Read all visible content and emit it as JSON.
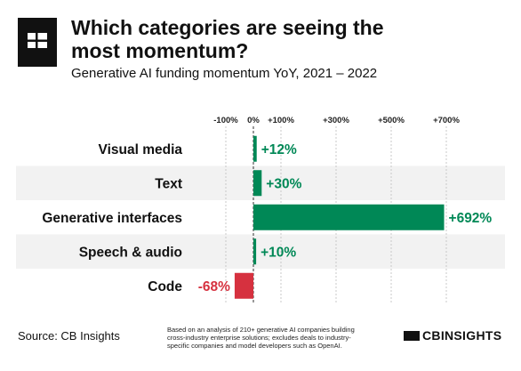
{
  "header": {
    "title": "Which categories are seeing the most momentum?",
    "subtitle": "Generative AI funding momentum YoY, 2021 – 2022"
  },
  "footer": {
    "source": "Source: CB Insights",
    "note": "Based on an analysis of 210+ generative AI companies building cross-industry enterprise solutions; excludes deals to industry-specific companies and model developers such as OpenAI.",
    "brand": "CBINSIGHTS"
  },
  "colors": {
    "positive": "#008856",
    "negative": "#d6313f",
    "band": "#f2f2f2"
  },
  "chart_data": {
    "type": "bar",
    "orientation": "horizontal",
    "categories": [
      "Visual media",
      "Text",
      "Generative interfaces",
      "Speech & audio",
      "Code"
    ],
    "values": [
      12,
      30,
      692,
      10,
      -68
    ],
    "value_labels": [
      "+12%",
      "+30%",
      "+692%",
      "+10%",
      "-68%"
    ],
    "xticks": [
      -100,
      0,
      100,
      300,
      500,
      700
    ],
    "xtick_labels": [
      "-100%",
      "0%",
      "+100%",
      "+300%",
      "+500%",
      "+700%"
    ],
    "xlim": [
      -100,
      700
    ],
    "grid": true
  }
}
